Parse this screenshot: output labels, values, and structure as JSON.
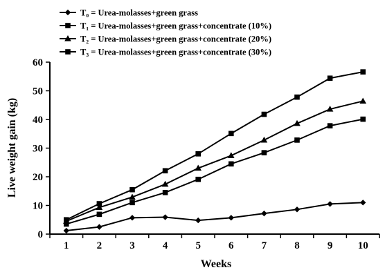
{
  "chart_data": {
    "type": "line",
    "xlabel": "Weeks",
    "ylabel": "Live weight gain (kg)",
    "x": [
      1,
      2,
      3,
      4,
      5,
      6,
      7,
      8,
      9,
      10
    ],
    "xlim": [
      0.5,
      10.5
    ],
    "ylim": [
      0,
      60
    ],
    "yticks": [
      0,
      10,
      20,
      30,
      40,
      50,
      60
    ],
    "grid": false,
    "legend_position": "top-left",
    "series": [
      {
        "name": "T₀ = Urea-molasses+green grass",
        "marker": "diamond",
        "values": [
          1.2,
          2.5,
          5.7,
          5.9,
          4.8,
          5.7,
          7.2,
          8.6,
          10.5,
          11.0
        ]
      },
      {
        "name": "T₁ = Urea-molasses+green grass+concentrate (10%)",
        "marker": "square",
        "values": [
          3.5,
          6.9,
          11.0,
          14.5,
          19.1,
          24.5,
          28.4,
          32.8,
          37.8,
          40.1
        ]
      },
      {
        "name": "T₂ = Urea-molasses+green grass+concentrate (20%)",
        "marker": "triangle",
        "values": [
          4.5,
          9.3,
          12.9,
          17.4,
          23.0,
          27.4,
          32.8,
          38.6,
          43.6,
          46.4
        ]
      },
      {
        "name": "T₃ = Urea-molasses+green grass+concentrate (30%)",
        "marker": "square",
        "values": [
          5.0,
          10.6,
          15.5,
          22.1,
          28.0,
          35.1,
          41.8,
          47.8,
          54.4,
          56.6
        ]
      }
    ]
  }
}
